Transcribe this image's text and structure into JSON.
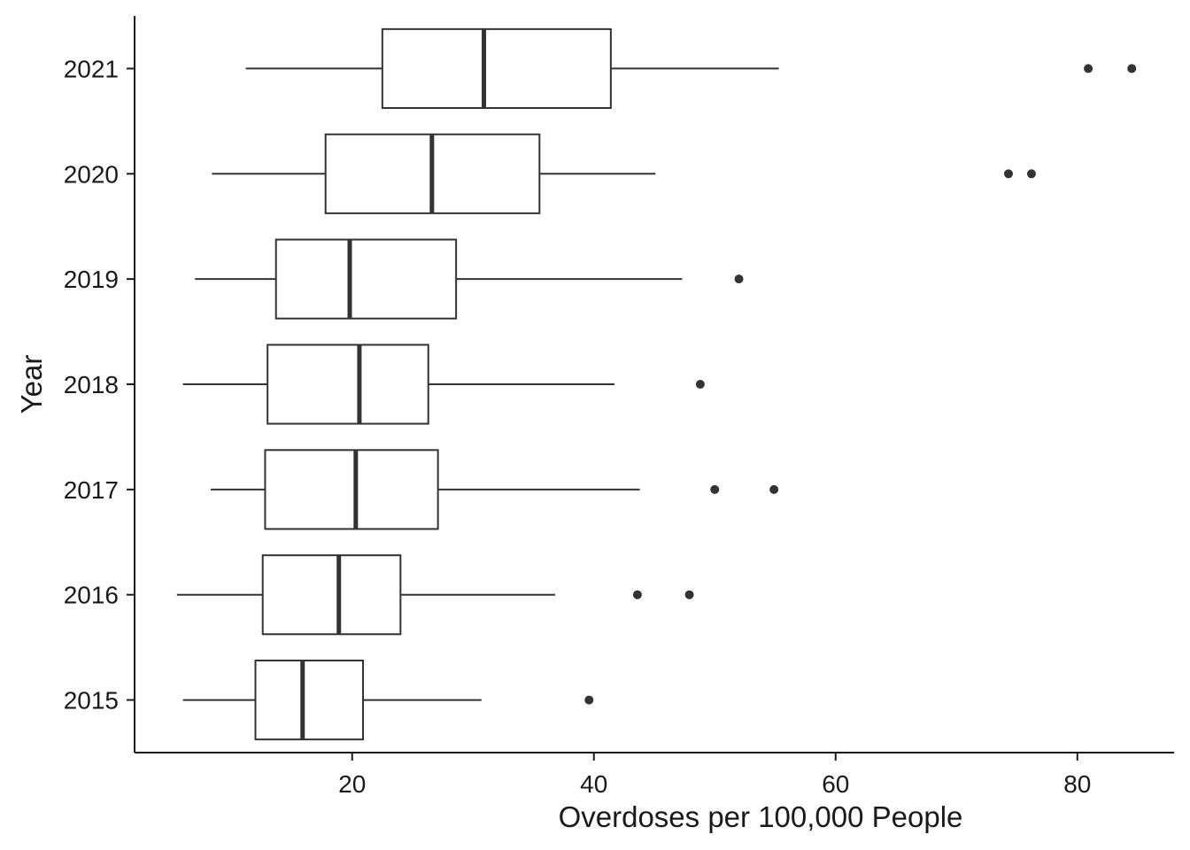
{
  "chart_data": {
    "type": "boxplot",
    "orientation": "horizontal",
    "xlabel": "Overdoses per 100,000 People",
    "ylabel": "Year",
    "xlim": [
      2,
      88
    ],
    "x_ticks": [
      20,
      40,
      60,
      80
    ],
    "grid": false,
    "legend": "none",
    "colors": {
      "stroke": "#333333",
      "fill": "#ffffff",
      "outlier": "#333333",
      "axis": "#1a1a1a"
    },
    "categories": [
      "2015",
      "2016",
      "2017",
      "2018",
      "2019",
      "2020",
      "2021"
    ],
    "boxes": [
      {
        "category": "2015",
        "whisker_low": 6.0,
        "q1": 12.0,
        "median": 15.9,
        "q3": 20.9,
        "whisker_high": 30.7,
        "outliers": [
          39.6
        ]
      },
      {
        "category": "2016",
        "whisker_low": 5.5,
        "q1": 12.6,
        "median": 18.9,
        "q3": 24.0,
        "whisker_high": 36.8,
        "outliers": [
          43.6,
          47.9
        ]
      },
      {
        "category": "2017",
        "whisker_low": 8.3,
        "q1": 12.8,
        "median": 20.3,
        "q3": 27.1,
        "whisker_high": 43.8,
        "outliers": [
          50.0,
          54.9
        ]
      },
      {
        "category": "2018",
        "whisker_low": 6.0,
        "q1": 13.0,
        "median": 20.6,
        "q3": 26.3,
        "whisker_high": 41.7,
        "outliers": [
          48.8
        ]
      },
      {
        "category": "2019",
        "whisker_low": 7.0,
        "q1": 13.7,
        "median": 19.8,
        "q3": 28.6,
        "whisker_high": 47.3,
        "outliers": [
          52.0
        ]
      },
      {
        "category": "2020",
        "whisker_low": 8.4,
        "q1": 17.8,
        "median": 26.6,
        "q3": 35.5,
        "whisker_high": 45.1,
        "outliers": [
          74.3,
          76.2
        ]
      },
      {
        "category": "2021",
        "whisker_low": 11.2,
        "q1": 22.5,
        "median": 30.9,
        "q3": 41.4,
        "whisker_high": 55.3,
        "outliers": [
          80.9,
          84.5
        ]
      }
    ]
  }
}
